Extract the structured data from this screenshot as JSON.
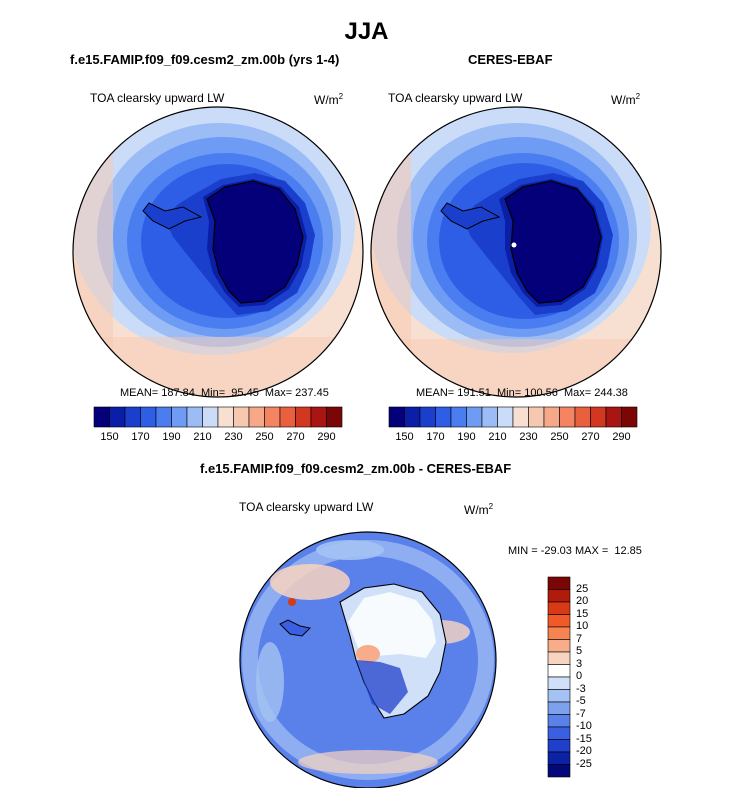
{
  "title": "JJA",
  "panels": [
    {
      "title": "f.e15.FAMIP.f09_f09.cesm2_zm.00b (yrs 1-4)",
      "variable": "TOA clearsky upward LW",
      "units_base": "W/m",
      "units_exp": "2",
      "stats": "MEAN= 187.84  Min=  95.45  Max= 237.45"
    },
    {
      "title": "CERES-EBAF",
      "variable": "TOA clearsky upward LW",
      "units_base": "W/m",
      "units_exp": "2",
      "stats": "MEAN= 191.51  Min= 100.56  Max= 244.38"
    },
    {
      "title": "f.e15.FAMIP.f09_f09.cesm2_zm.00b - CERES-EBAF",
      "variable": "TOA clearsky upward LW",
      "units_base": "W/m",
      "units_exp": "2",
      "stats": "MIN = -29.03 MAX =  12.85"
    }
  ],
  "colorbar_main": {
    "colors": [
      "#04007a",
      "#0a1ea8",
      "#1a3fcc",
      "#2e5ee6",
      "#4a7df0",
      "#6e9cf4",
      "#9cbcf6",
      "#cadcf8",
      "#f7e0d2",
      "#f7c8b0",
      "#f6a888",
      "#f48462",
      "#e9603e",
      "#d1381f",
      "#a81512",
      "#7a0606"
    ],
    "tick_labels": [
      "150",
      "170",
      "190",
      "210",
      "230",
      "250",
      "270",
      "290"
    ]
  },
  "colorbar_diff": {
    "colors": [
      "#7a0606",
      "#b01b0c",
      "#d83a16",
      "#f05a28",
      "#f68352",
      "#f7ac8a",
      "#f8d4c0",
      "#ffffff",
      "#cfe0f8",
      "#a4c2f3",
      "#7ea1ee",
      "#5a80ea",
      "#3a5fe2",
      "#2040cc",
      "#0c22a4",
      "#02087a"
    ],
    "tick_labels": [
      "25",
      "20",
      "15",
      "10",
      "7",
      "5",
      "3",
      "0",
      "-3",
      "-5",
      "-7",
      "-10",
      "-15",
      "-20",
      "-25"
    ]
  },
  "chart_data": [
    {
      "type": "heatmap",
      "projection": "south-polar-stereographic",
      "title": "f.e15.FAMIP.f09_f09.cesm2_zm.00b (yrs 1-4)",
      "variable": "TOA clearsky upward LW",
      "units": "W/m2",
      "mean": 187.84,
      "min": 95.45,
      "max": 237.45,
      "contour_levels": [
        150,
        160,
        170,
        180,
        190,
        200,
        210,
        220,
        230,
        240,
        250,
        260,
        270,
        280,
        290
      ]
    },
    {
      "type": "heatmap",
      "projection": "south-polar-stereographic",
      "title": "CERES-EBAF",
      "variable": "TOA clearsky upward LW",
      "units": "W/m2",
      "mean": 191.51,
      "min": 100.56,
      "max": 244.38,
      "contour_levels": [
        150,
        160,
        170,
        180,
        190,
        200,
        210,
        220,
        230,
        240,
        250,
        260,
        270,
        280,
        290
      ]
    },
    {
      "type": "heatmap",
      "projection": "south-polar-stereographic",
      "title": "f.e15.FAMIP.f09_f09.cesm2_zm.00b - CERES-EBAF",
      "variable": "TOA clearsky upward LW",
      "units": "W/m2",
      "min": -29.03,
      "max": 12.85,
      "contour_levels": [
        -25,
        -20,
        -15,
        -10,
        -7,
        -5,
        -3,
        0,
        3,
        5,
        7,
        10,
        15,
        20,
        25
      ]
    }
  ]
}
